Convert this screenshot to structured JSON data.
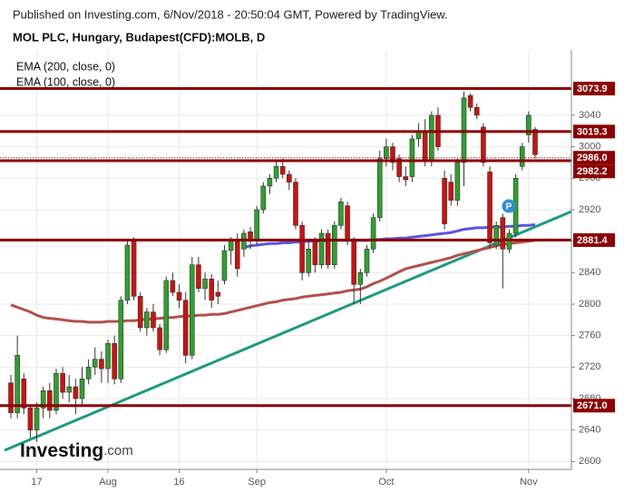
{
  "chart_data": {
    "type": "candlestick",
    "header": "Published on Investing.com, 6/Nov/2018 - 20:50:04 GMT, Powered by TradingView.",
    "title": "MOL PLC, Hungary, Budapest(CFD):MOLB, D",
    "categories": [
      null,
      null,
      null,
      null,
      "17",
      null,
      null,
      null,
      null,
      null,
      null,
      null,
      null,
      null,
      null,
      "Aug",
      null,
      null,
      null,
      null,
      null,
      null,
      null,
      null,
      null,
      null,
      "16",
      null,
      null,
      null,
      null,
      null,
      null,
      null,
      null,
      null,
      null,
      null,
      "Sep",
      null,
      null,
      null,
      null,
      null,
      null,
      null,
      null,
      null,
      null,
      null,
      null,
      null,
      null,
      null,
      null,
      null,
      null,
      null,
      "Oct",
      null,
      null,
      null,
      null,
      null,
      null,
      null,
      null,
      null,
      null,
      null,
      null,
      null,
      null,
      null,
      null,
      null,
      null,
      null,
      null,
      null,
      "Nov",
      null
    ],
    "open": [
      2700,
      2662,
      2705,
      2668,
      2640,
      2668,
      2690,
      2665,
      2712,
      2688,
      2695,
      2680,
      2705,
      2720,
      2730,
      2718,
      2750,
      2705,
      2805,
      2880,
      2810,
      2770,
      2790,
      2770,
      2742,
      2830,
      2815,
      2805,
      2735,
      2850,
      2820,
      2832,
      2815,
      2830,
      2868,
      2880,
      2870,
      2892,
      2880,
      2920,
      2950,
      2960,
      2975,
      2965,
      2955,
      2900,
      2840,
      2880,
      2850,
      2890,
      2850,
      2900,
      2925,
      2880,
      2825,
      2840,
      2870,
      2910,
      2985,
      3000,
      2985,
      2962,
      2962,
      3010,
      3020,
      2982,
      3040,
      2960,
      2955,
      2932,
      2980,
      3065,
      3050,
      3025,
      2968,
      2875,
      2910,
      2870,
      2890,
      2975,
      3015,
      3022
    ],
    "high": [
      2710,
      2760,
      2712,
      2672,
      2675,
      2695,
      2700,
      2718,
      2720,
      2710,
      2705,
      2720,
      2730,
      2745,
      2740,
      2755,
      2760,
      2810,
      2880,
      2885,
      2815,
      2795,
      2800,
      2775,
      2835,
      2840,
      2825,
      2815,
      2860,
      2860,
      2840,
      2838,
      2830,
      2875,
      2885,
      2890,
      2895,
      2898,
      2925,
      2955,
      2965,
      2982,
      2985,
      2970,
      2960,
      2905,
      2880,
      2885,
      2895,
      2895,
      2905,
      2935,
      2930,
      2885,
      2845,
      2875,
      2915,
      2995,
      3010,
      3005,
      2990,
      2975,
      3015,
      3030,
      3035,
      3045,
      3050,
      2970,
      2965,
      2985,
      3070,
      3068,
      3055,
      3030,
      2975,
      2905,
      2915,
      2895,
      2965,
      3005,
      3045,
      3025
    ],
    "low": [
      2655,
      2655,
      2660,
      2630,
      2625,
      2655,
      2655,
      2660,
      2680,
      2675,
      2660,
      2672,
      2698,
      2710,
      2700,
      2700,
      2698,
      2700,
      2800,
      2805,
      2765,
      2760,
      2765,
      2735,
      2738,
      2810,
      2795,
      2725,
      2730,
      2815,
      2805,
      2795,
      2800,
      2825,
      2850,
      2835,
      2860,
      2870,
      2875,
      2915,
      2940,
      2955,
      2960,
      2945,
      2895,
      2830,
      2835,
      2840,
      2845,
      2845,
      2845,
      2895,
      2875,
      2800,
      2800,
      2835,
      2865,
      2905,
      2975,
      2970,
      2955,
      2950,
      2955,
      3000,
      2975,
      2975,
      2995,
      2895,
      2925,
      2925,
      2950,
      3045,
      3035,
      2975,
      2870,
      2870,
      2820,
      2865,
      2885,
      2970,
      3005,
      2985
    ],
    "close": [
      2662,
      2735,
      2668,
      2640,
      2668,
      2690,
      2665,
      2712,
      2688,
      2695,
      2680,
      2705,
      2720,
      2730,
      2718,
      2750,
      2705,
      2805,
      2875,
      2810,
      2770,
      2790,
      2770,
      2742,
      2830,
      2815,
      2805,
      2735,
      2850,
      2820,
      2832,
      2805,
      2810,
      2868,
      2880,
      2845,
      2890,
      2880,
      2920,
      2950,
      2960,
      2975,
      2965,
      2955,
      2900,
      2840,
      2870,
      2850,
      2890,
      2850,
      2900,
      2930,
      2880,
      2825,
      2840,
      2870,
      2910,
      2985,
      3000,
      2980,
      2962,
      2958,
      3010,
      3020,
      2982,
      3040,
      3000,
      2902,
      2932,
      2980,
      3062,
      3050,
      3040,
      2980,
      2878,
      2900,
      2870,
      2890,
      2960,
      3000,
      3040,
      2990
    ],
    "up_color": "#2ea12e",
    "down_color": "#d01010",
    "series": [
      {
        "name": "EMA (200, close, 0)",
        "color": "#b3504b",
        "values": [
          2799,
          2796,
          2793,
          2790,
          2786,
          2783,
          2782,
          2781,
          2780,
          2779,
          2778,
          2778,
          2777,
          2777,
          2777,
          2778,
          2778,
          2778,
          2779,
          2779,
          2780,
          2781,
          2781,
          2782,
          2783,
          2783,
          2784,
          2785,
          2785,
          2786,
          2786,
          2787,
          2787,
          2788,
          2790,
          2792,
          2794,
          2796,
          2798,
          2800,
          2802,
          2803,
          2805,
          2806,
          2807,
          2809,
          2810,
          2811,
          2812,
          2813,
          2814,
          2815,
          2817,
          2818,
          2819,
          2822,
          2826,
          2829,
          2833,
          2837,
          2841,
          2845,
          2847,
          2849,
          2851,
          2853,
          2855,
          2857,
          2859,
          2862,
          2864,
          2866,
          2868,
          2870,
          2872,
          2874,
          2876,
          2877,
          2878,
          2879,
          2880,
          2881
        ]
      },
      {
        "name": "EMA (100, close, 0)",
        "color": "#5b55e0",
        "values": [
          null,
          null,
          null,
          null,
          null,
          null,
          null,
          null,
          null,
          null,
          null,
          null,
          null,
          null,
          null,
          null,
          null,
          null,
          null,
          null,
          null,
          null,
          null,
          null,
          null,
          null,
          null,
          null,
          null,
          null,
          null,
          null,
          null,
          null,
          null,
          null,
          2872,
          2874,
          2875,
          2876,
          2877,
          2877,
          2878,
          2878,
          2879,
          2879,
          2880,
          2880,
          2880,
          2881,
          2881,
          2881,
          2881,
          2881,
          2881,
          2881,
          2882,
          2882,
          2883,
          2883,
          2884,
          2884,
          2885,
          2886,
          2887,
          2888,
          2889,
          2890,
          2891,
          2893,
          2895,
          2896,
          2897,
          2897,
          2898,
          2898,
          2898,
          2899,
          2899,
          2900,
          2900,
          2901
        ]
      }
    ],
    "levels": [
      3073.9,
      3019.3,
      2982.2,
      2881.4,
      {
        "value": 2671,
        "label": "2671.0"
      }
    ],
    "dotted_level": {
      "value": 2986,
      "label": "2986.0"
    },
    "level_color": "#8b0000",
    "ylim": [
      2590,
      3123
    ],
    "yticks": [
      2600,
      2640,
      2680,
      2720,
      2760,
      2800,
      2840,
      2880,
      2920,
      2960,
      3000,
      3040
    ],
    "grid": true,
    "marker_label": "P",
    "logo_name": "Investing",
    "logo_suffix": ".com"
  }
}
